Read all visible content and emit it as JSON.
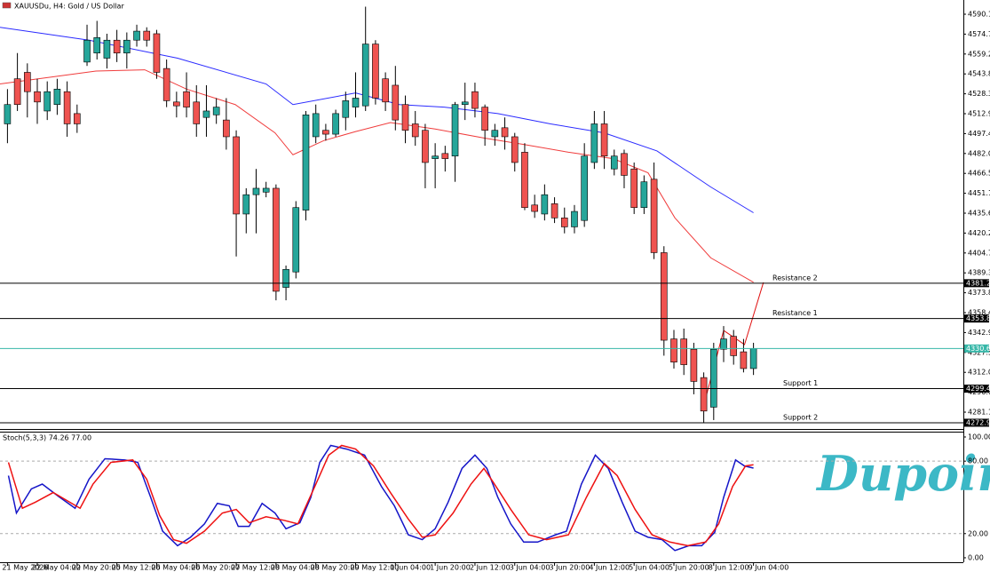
{
  "chart_data": [
    {
      "type": "candlestick",
      "title": "XAUUSDu, H4:  Gold / US Dollar",
      "open": [
        4505,
        4540,
        4545,
        4530,
        4515,
        4520,
        4530,
        4513,
        4553,
        4560,
        4556,
        4570,
        4560,
        4570,
        4577,
        4575,
        4548,
        4522,
        4530,
        4522,
        4510,
        4512,
        4508,
        4495,
        4435,
        4450,
        4452,
        4455,
        4378,
        4390,
        4438,
        4495,
        4500,
        4497,
        4510,
        4518,
        4519,
        4567,
        4540,
        4535,
        4520,
        4505,
        4500,
        4478,
        4482,
        4480,
        4520,
        4530,
        4518,
        4495,
        4502,
        4495,
        4483,
        4442,
        4435,
        4443,
        4432,
        4425,
        4430,
        4475,
        4505,
        4470,
        4482,
        4470,
        4440,
        4462,
        4405,
        4338,
        4338,
        4330,
        4308,
        4285,
        4330,
        4340,
        4328,
        4315
      ],
      "high": [
        4532,
        4560,
        4552,
        4540,
        4538,
        4540,
        4538,
        4520,
        4582,
        4585,
        4575,
        4578,
        4576,
        4582,
        4580,
        4578,
        4555,
        4530,
        4545,
        4535,
        4535,
        4525,
        4525,
        4500,
        4455,
        4470,
        4460,
        4458,
        4395,
        4445,
        4515,
        4520,
        4505,
        4516,
        4530,
        4545,
        4596,
        4570,
        4545,
        4550,
        4527,
        4515,
        4505,
        4490,
        4488,
        4522,
        4537,
        4537,
        4520,
        4505,
        4510,
        4498,
        4490,
        4450,
        4458,
        4448,
        4440,
        4442,
        4490,
        4515,
        4515,
        4485,
        4485,
        4475,
        4465,
        4475,
        4410,
        4345,
        4346,
        4335,
        4312,
        4335,
        4348,
        4345,
        4338,
        4335
      ],
      "low": [
        4490,
        4515,
        4510,
        4505,
        4508,
        4512,
        4495,
        4498,
        4550,
        4555,
        4548,
        4553,
        4548,
        4565,
        4565,
        4540,
        4518,
        4510,
        4510,
        4495,
        4495,
        4505,
        4485,
        4402,
        4420,
        4420,
        4448,
        4368,
        4368,
        4385,
        4430,
        4490,
        4492,
        4495,
        4500,
        4510,
        4515,
        4520,
        4515,
        4500,
        4490,
        4488,
        4455,
        4455,
        4468,
        4460,
        4508,
        4510,
        4488,
        4488,
        4485,
        4468,
        4438,
        4432,
        4430,
        4428,
        4420,
        4420,
        4425,
        4470,
        4470,
        4465,
        4455,
        4435,
        4435,
        4400,
        4325,
        4315,
        4310,
        4295,
        4272.9,
        4275,
        4320,
        4318,
        4312,
        4310
      ],
      "close": [
        4520,
        4520,
        4530,
        4522,
        4530,
        4532,
        4505,
        4505,
        4570,
        4572,
        4570,
        4560,
        4570,
        4577,
        4570,
        4545,
        4523,
        4519,
        4518,
        4505,
        4515,
        4518,
        4495,
        4435,
        4450,
        4455,
        4455,
        4375,
        4392,
        4440,
        4512,
        4513,
        4497,
        4513,
        4523,
        4525,
        4567,
        4525,
        4522,
        4508,
        4500,
        4495,
        4475,
        4480,
        4478,
        4520,
        4522,
        4517,
        4500,
        4500,
        4495,
        4475,
        4440,
        4437,
        4450,
        4432,
        4425,
        4437,
        4480,
        4505,
        4480,
        4480,
        4465,
        4440,
        4460,
        4405,
        4337,
        4320,
        4318,
        4305,
        4282,
        4330,
        4338,
        4325,
        4315,
        4330.6
      ],
      "up_color": "#26a69a",
      "down_color": "#ef5350",
      "xlim": [
        -0.75,
        96.1
      ],
      "ylim": [
        4268.06,
        4601.19
      ],
      "yticks": [
        4590.15,
        {
          "value": 4574.7,
          "label": "4574.70"
        },
        4559.25,
        {
          "value": 4543.8,
          "label": "4543.80"
        },
        4528.35,
        {
          "value": 4512.9,
          "label": "4512.90"
        },
        4497.45,
        {
          "value": 4482,
          "label": "4482.00"
        },
        4466.55,
        {
          "value": 4451.1,
          "label": "4451.10"
        },
        4435.65,
        {
          "value": 4420.2,
          "label": "4420.20"
        },
        4404.75,
        {
          "value": 4389.3,
          "label": "4389.30"
        },
        4373.85,
        {
          "value": 4358.4,
          "label": "4358.40"
        },
        4342.95,
        {
          "value": 4327.5,
          "label": "4327.50"
        },
        4312.05,
        {
          "value": 4296.6,
          "label": "4296.60"
        },
        4281.15
      ],
      "xticks": [
        {
          "value": 0,
          "label": "21 May 2026"
        },
        {
          "value": 3,
          "label": "22 May 04:00"
        },
        {
          "value": 7,
          "label": "22 May 20:00"
        },
        {
          "value": 11,
          "label": "25 May 12:00"
        },
        {
          "value": 15,
          "label": "26 May 04:00"
        },
        {
          "value": 19,
          "label": "26 May 20:00"
        },
        {
          "value": 23,
          "label": "27 May 12:00"
        },
        {
          "value": 27,
          "label": "28 May 04:00"
        },
        {
          "value": 31,
          "label": "28 May 20:00"
        },
        {
          "value": 35,
          "label": "29 May 12:00"
        },
        {
          "value": 39,
          "label": "1 Jun 04:00"
        },
        {
          "value": 43,
          "label": "1 Jun 20:00"
        },
        {
          "value": 47,
          "label": "2 Jun 12:00"
        },
        {
          "value": 51,
          "label": "3 Jun 04:00"
        },
        {
          "value": 55,
          "label": "3 Jun 20:00"
        },
        {
          "value": 59,
          "label": "4 Jun 12:00"
        },
        {
          "value": 63,
          "label": "5 Jun 04:00"
        },
        {
          "value": 67,
          "label": "5 Jun 20:00"
        },
        {
          "value": 71,
          "label": "8 Jun 12:00"
        },
        {
          "value": 75,
          "label": "9 Jun 04:00"
        }
      ],
      "lines": [
        {
          "color": "#2b2bff",
          "x": [
            -0.75,
            8.2,
            17.1,
            26.0,
            28.7,
            35.0,
            39.4,
            43.9,
            49.3,
            54.6,
            60.0,
            65.3,
            70.7,
            75.0
          ],
          "values": [
            4580,
            4570,
            4556,
            4536,
            4520,
            4529,
            4520,
            4518,
            4513,
            4505,
            4498,
            4484,
            4456,
            4436
          ]
        },
        {
          "color": "#f03c3c",
          "x": [
            -0.75,
            8.9,
            13.8,
            18.0,
            22.9,
            26.9,
            28.7,
            31.8,
            35.0,
            38.5,
            43.0,
            47.9,
            51.9,
            56.4,
            60.9,
            64.4,
            67.1,
            70.7,
            75.0
          ],
          "values": [
            4536,
            4546,
            4547,
            4532,
            4520,
            4498,
            4481,
            4492,
            4499,
            4506,
            4501,
            4494,
            4489,
            4483,
            4478,
            4467,
            4432,
            4401,
            4382
          ]
        },
        {
          "color": "#e01010",
          "x": [
            70.1,
            72.0,
            74.1,
            76.0
          ],
          "values": [
            4289.4,
            4344.6,
            4333.6,
            4381.9
          ]
        }
      ],
      "levels": [
        {
          "value": 4381.29,
          "label": "4381.29",
          "name": "Resistance 2",
          "color": "#000000"
        },
        {
          "value": 4353.83,
          "label": "4353.83",
          "name": "Resistance 1",
          "color": "#000000"
        },
        {
          "value": 4330.6,
          "label": "4330.60",
          "color": "#37b7a8"
        },
        {
          "value": 4299.41,
          "label": "4299.41",
          "name": "Support 1",
          "color": "#000000"
        },
        {
          "value": 4272.92,
          "label": "4272.92",
          "name": "Support 2",
          "color": "#000000"
        }
      ]
    },
    {
      "type": "stochastic",
      "title": "Stoch(5,3,3) 74.26 77.00",
      "watermark": "Dupoin",
      "xlim": [
        -0.75,
        96.1
      ],
      "ylim": [
        -3.7,
        104.4
      ],
      "yticks": [
        {
          "value": 100,
          "label": "100.00"
        },
        {
          "value": 80,
          "label": "80.00"
        },
        {
          "value": 20,
          "label": "20.00"
        },
        {
          "value": 0,
          "label": "0.00"
        }
      ],
      "series": [
        {
          "color": "#1515c8",
          "x": [
            0.1,
            0.9,
            2.4,
            3.5,
            5.1,
            6.8,
            8.2,
            9.8,
            11.8,
            13.1,
            14.4,
            15.6,
            17.1,
            18.4,
            19.8,
            21.1,
            22.3,
            23.2,
            24.3,
            25.6,
            26.9,
            28.0,
            29.4,
            30.5,
            31.4,
            32.5,
            34.1,
            35.9,
            37.6,
            38.9,
            40.3,
            41.7,
            43.0,
            44.3,
            45.7,
            47.0,
            48.2,
            49.3,
            50.6,
            51.9,
            53.3,
            55.1,
            56.2,
            57.7,
            59.1,
            60.4,
            61.8,
            63.1,
            64.4,
            65.8,
            67.1,
            68.5,
            69.8,
            71.1,
            72.0,
            73.2,
            74.1,
            75.0
          ],
          "values": [
            68,
            37,
            57,
            61,
            51,
            41,
            65,
            82,
            81,
            79,
            50,
            22,
            10,
            17,
            28,
            45,
            43,
            26,
            26,
            45,
            37,
            24,
            29,
            50,
            79,
            93,
            90,
            85,
            59,
            43,
            19,
            15,
            24,
            46,
            74,
            85,
            74,
            50,
            28,
            13,
            13,
            19,
            22,
            61,
            85,
            74,
            46,
            22,
            17,
            15,
            6,
            10,
            10,
            21,
            50,
            81,
            76,
            74.26
          ]
        },
        {
          "color": "#ee1111",
          "x": [
            0.1,
            1.5,
            2.8,
            4.6,
            7.3,
            8.6,
            10.4,
            12.6,
            14.0,
            15.3,
            16.7,
            18.0,
            19.8,
            21.6,
            23.0,
            24.3,
            26.0,
            27.8,
            29.2,
            30.9,
            32.3,
            33.6,
            35.0,
            36.8,
            38.5,
            40.3,
            41.7,
            43.0,
            44.8,
            46.6,
            47.9,
            48.8,
            50.6,
            52.4,
            54.2,
            56.4,
            58.2,
            60.0,
            61.3,
            63.1,
            64.8,
            66.6,
            68.4,
            70.2,
            71.5,
            72.9,
            74.2,
            75.0
          ],
          "values": [
            79,
            41,
            46,
            54,
            41,
            61,
            79,
            81,
            65,
            35,
            15,
            12,
            22,
            37,
            40,
            29,
            34,
            31,
            28,
            59,
            85,
            93,
            90,
            76,
            54,
            32,
            17,
            19,
            37,
            61,
            74,
            63,
            40,
            19,
            15,
            19,
            50,
            78,
            68,
            40,
            19,
            13,
            10,
            13,
            28,
            59,
            76,
            77
          ]
        }
      ]
    }
  ]
}
